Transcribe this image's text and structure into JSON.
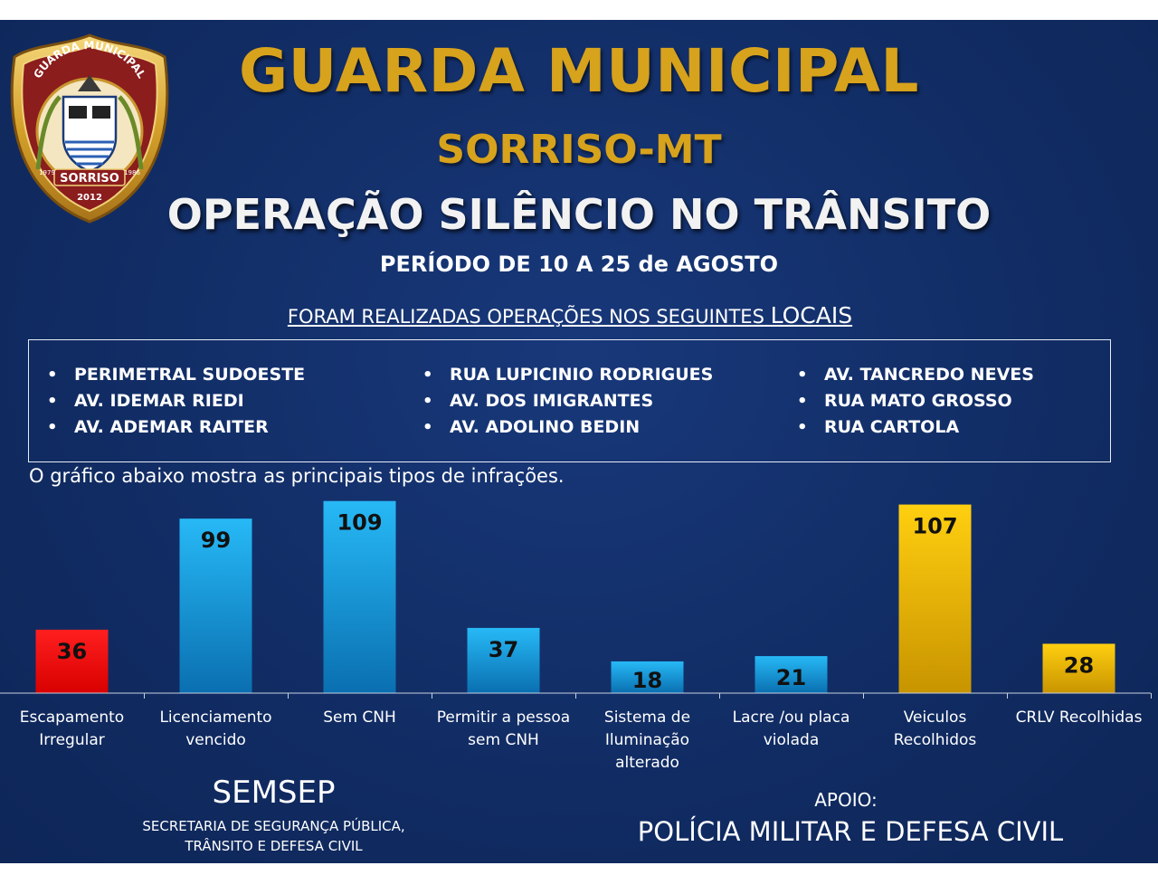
{
  "header": {
    "title": "GUARDA MUNICIPAL",
    "subtitle": "SORRISO-MT",
    "operation": "OPERAÇÃO SILÊNCIO NO TRÂNSITO",
    "period": "PERÍODO DE 10 A 25 de AGOSTO"
  },
  "badge": {
    "top_text": "GUARDA MUNICIPAL",
    "city": "SORRISO",
    "year_left": "1979",
    "year_right": "1986",
    "year_bottom": "2012"
  },
  "locations": {
    "heading_prefix": "FORAM REALIZADAS OPERAÇÕES NOS SEGUINTES ",
    "heading_emphasis": "LOCAIS",
    "columns": [
      [
        "PERIMETRAL SUDOESTE",
        "AV. IDEMAR RIEDI",
        "AV. ADEMAR RAITER"
      ],
      [
        "RUA LUPICINIO RODRIGUES",
        "AV. DOS IMIGRANTES",
        "AV. ADOLINO BEDIN"
      ],
      [
        "AV. TANCREDO NEVES",
        "RUA MATO GROSSO",
        "RUA CARTOLA"
      ]
    ]
  },
  "intro": "O gráfico abaixo mostra as principais tipos de infrações.",
  "chart_data": {
    "type": "bar",
    "title": "",
    "xlabel": "",
    "ylabel": "",
    "ylim": [
      0,
      115
    ],
    "grid": false,
    "categories": [
      [
        "Escapamento",
        "Irregular"
      ],
      [
        "Licenciamento",
        "vencido"
      ],
      [
        "Sem CNH"
      ],
      [
        "Permitir a pessoa",
        "sem CNH"
      ],
      [
        "Sistema de",
        "Iluminação",
        "alterado"
      ],
      [
        "Lacre /ou placa",
        "violada"
      ],
      [
        "Veiculos",
        "Recolhidos"
      ],
      [
        "CRLV Recolhidas"
      ]
    ],
    "values": [
      36,
      99,
      109,
      37,
      18,
      21,
      107,
      28
    ],
    "colors": [
      "red",
      "blue",
      "blue",
      "blue",
      "blue",
      "blue",
      "gold",
      "gold"
    ]
  },
  "footer": {
    "org": "SEMSEP",
    "org_line1": "SECRETARIA  DE SEGURANÇA PÚBLICA,",
    "org_line2": "TRÂNSITO E DEFESA CIVIL",
    "apoio_label": "APOIO:",
    "support": "POLÍCIA MILITAR E DEFESA CIVIL"
  }
}
